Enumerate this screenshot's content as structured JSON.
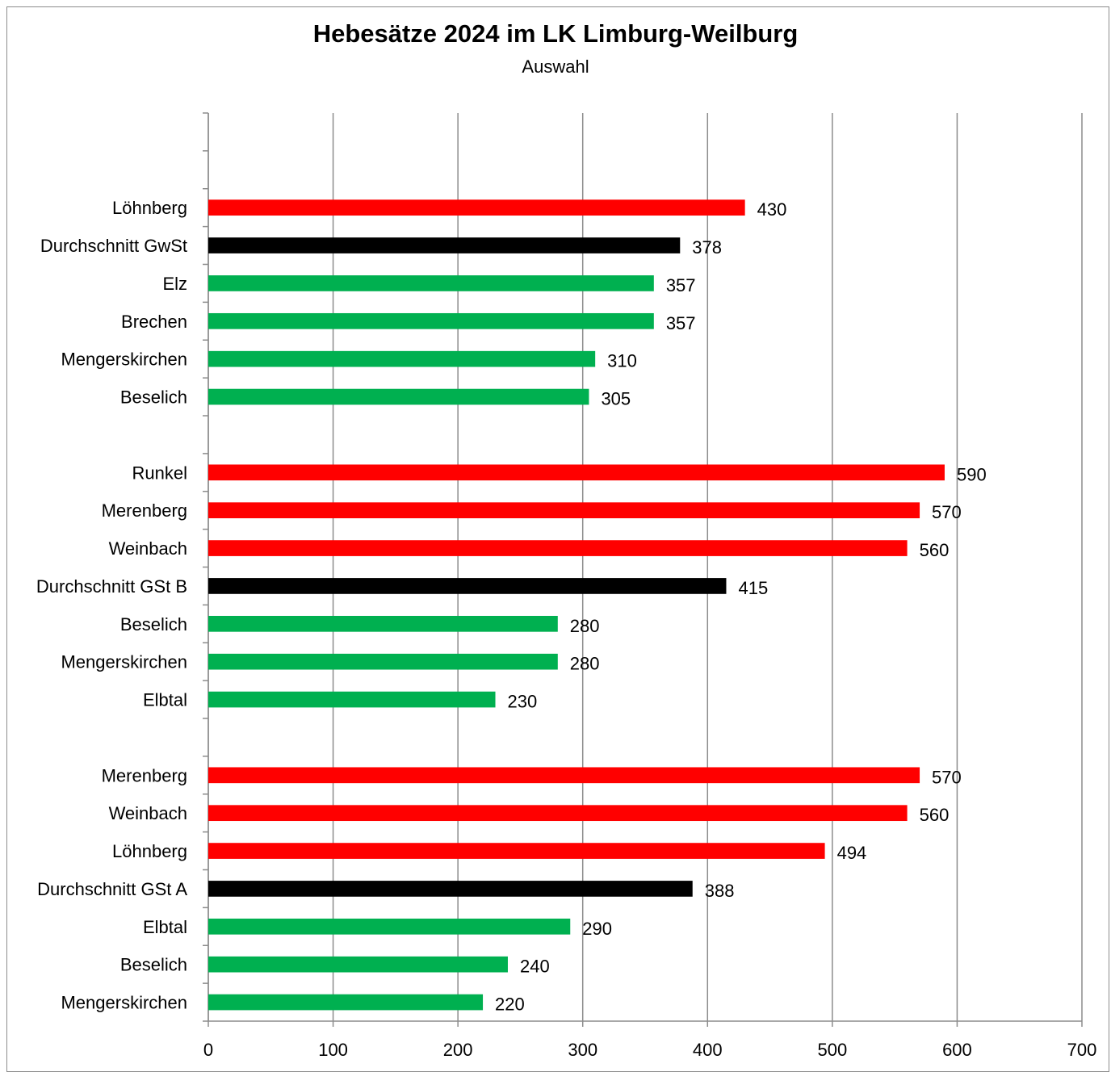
{
  "chart_data": {
    "type": "bar",
    "orientation": "horizontal",
    "title": "Hebesätze 2024 im LK Limburg-Weilburg",
    "subtitle": "Auswahl",
    "xlim": [
      0,
      700
    ],
    "xticks": [
      0,
      100,
      200,
      300,
      400,
      500,
      600,
      700
    ],
    "grid": "vertical",
    "legend": "none",
    "colors": {
      "high": "#ff0000",
      "average": "#000000",
      "low": "#00b050",
      "grid": "#8c8c8c"
    },
    "categories": [
      "",
      "",
      "Löhnberg",
      "Durchschnitt GwSt",
      "Elz",
      "Brechen",
      "Mengerskirchen",
      "Beselich",
      "",
      "Runkel",
      "Merenberg",
      "Weinbach",
      "Durchschnitt GSt B",
      "Beselich",
      "Mengerskirchen",
      "Elbtal",
      "",
      "Merenberg",
      "Weinbach",
      "Löhnberg",
      "Durchschnitt GSt A",
      "Elbtal",
      "Beselich",
      "Mengerskirchen"
    ],
    "values": [
      null,
      null,
      430,
      378,
      357,
      357,
      310,
      305,
      null,
      590,
      570,
      560,
      415,
      280,
      280,
      230,
      null,
      570,
      560,
      494,
      388,
      290,
      240,
      220
    ],
    "bar_colors": [
      null,
      null,
      "high",
      "average",
      "low",
      "low",
      "low",
      "low",
      null,
      "high",
      "high",
      "high",
      "average",
      "low",
      "low",
      "low",
      null,
      "high",
      "high",
      "high",
      "average",
      "low",
      "low",
      "low"
    ]
  }
}
